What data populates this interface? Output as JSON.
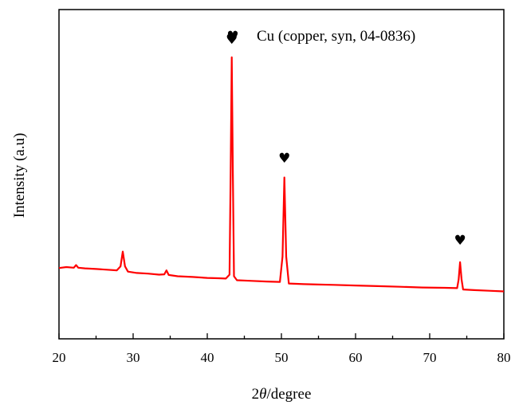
{
  "chart_data": {
    "type": "line",
    "xlabel_prefix": "2",
    "xlabel_var": "θ",
    "xlabel_suffix": "/degree",
    "ylabel": "Intensity (a.u)",
    "xlim": [
      20,
      80
    ],
    "ylim": [
      0,
      100
    ],
    "x_ticks": [
      20,
      30,
      40,
      50,
      60,
      70,
      80
    ],
    "grid": false,
    "line_color": "#ff0000",
    "legend": {
      "marker": "♥",
      "label": "Cu (copper, syn, 04-0836)",
      "placement": "top-center"
    },
    "peak_markers": [
      {
        "x": 43.3,
        "y": 91,
        "symbol": "♥"
      },
      {
        "x": 50.4,
        "y": 55,
        "symbol": "♥"
      },
      {
        "x": 74.1,
        "y": 30,
        "symbol": "♥"
      }
    ],
    "series": [
      {
        "points": [
          [
            20.0,
            21.5
          ],
          [
            21.0,
            21.8
          ],
          [
            22.0,
            21.6
          ],
          [
            22.3,
            22.4
          ],
          [
            22.6,
            21.6
          ],
          [
            23.5,
            21.4
          ],
          [
            25.0,
            21.2
          ],
          [
            26.5,
            21.0
          ],
          [
            27.8,
            20.8
          ],
          [
            28.3,
            22.0
          ],
          [
            28.6,
            26.5
          ],
          [
            28.9,
            22.0
          ],
          [
            29.3,
            20.4
          ],
          [
            30.5,
            20.0
          ],
          [
            32.0,
            19.8
          ],
          [
            33.5,
            19.5
          ],
          [
            34.2,
            19.6
          ],
          [
            34.5,
            20.8
          ],
          [
            34.8,
            19.4
          ],
          [
            36.0,
            19.0
          ],
          [
            38.0,
            18.8
          ],
          [
            40.0,
            18.5
          ],
          [
            41.5,
            18.4
          ],
          [
            42.5,
            18.3
          ],
          [
            43.0,
            19.5
          ],
          [
            43.15,
            50.0
          ],
          [
            43.3,
            85.5
          ],
          [
            43.45,
            50.0
          ],
          [
            43.6,
            19.0
          ],
          [
            44.0,
            17.8
          ],
          [
            46.0,
            17.6
          ],
          [
            48.0,
            17.4
          ],
          [
            49.8,
            17.3
          ],
          [
            50.15,
            25.0
          ],
          [
            50.4,
            49.0
          ],
          [
            50.65,
            25.0
          ],
          [
            51.0,
            16.8
          ],
          [
            53.0,
            16.6
          ],
          [
            55.0,
            16.5
          ],
          [
            57.0,
            16.4
          ],
          [
            60.0,
            16.2
          ],
          [
            63.0,
            16.0
          ],
          [
            66.0,
            15.8
          ],
          [
            69.0,
            15.6
          ],
          [
            72.0,
            15.5
          ],
          [
            73.7,
            15.4
          ],
          [
            73.9,
            18.0
          ],
          [
            74.1,
            23.3
          ],
          [
            74.3,
            18.0
          ],
          [
            74.5,
            15.0
          ],
          [
            76.0,
            14.8
          ],
          [
            78.0,
            14.6
          ],
          [
            80.0,
            14.4
          ]
        ]
      }
    ]
  }
}
